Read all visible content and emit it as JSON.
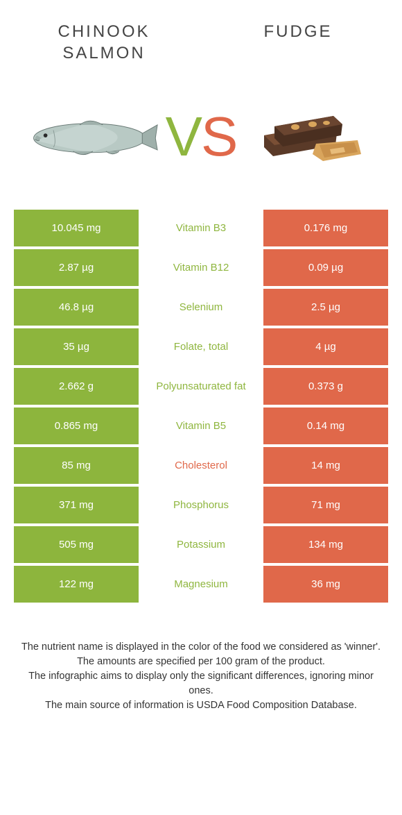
{
  "header": {
    "left_label": "CHINOOK SALMON",
    "right_label": "FUDGE"
  },
  "vs": {
    "v": "V",
    "s": "S"
  },
  "colors": {
    "left": "#8db53d",
    "right": "#e0684a",
    "nutrient_left_winner": "#8fb63f",
    "nutrient_right_winner": "#e0684a",
    "background": "#ffffff",
    "text": "#333333"
  },
  "rows": [
    {
      "left": "10.045 mg",
      "nutrient": "Vitamin B3",
      "winner": "left",
      "right": "0.176 mg"
    },
    {
      "left": "2.87 µg",
      "nutrient": "Vitamin B12",
      "winner": "left",
      "right": "0.09 µg"
    },
    {
      "left": "46.8 µg",
      "nutrient": "Selenium",
      "winner": "left",
      "right": "2.5 µg"
    },
    {
      "left": "35 µg",
      "nutrient": "Folate, total",
      "winner": "left",
      "right": "4 µg"
    },
    {
      "left": "2.662 g",
      "nutrient": "Polyunsaturated fat",
      "winner": "left",
      "right": "0.373 g"
    },
    {
      "left": "0.865 mg",
      "nutrient": "Vitamin B5",
      "winner": "left",
      "right": "0.14 mg"
    },
    {
      "left": "85 mg",
      "nutrient": "Cholesterol",
      "winner": "right",
      "right": "14 mg"
    },
    {
      "left": "371 mg",
      "nutrient": "Phosphorus",
      "winner": "left",
      "right": "71 mg"
    },
    {
      "left": "505 mg",
      "nutrient": "Potassium",
      "winner": "left",
      "right": "134 mg"
    },
    {
      "left": "122 mg",
      "nutrient": "Magnesium",
      "winner": "left",
      "right": "36 mg"
    }
  ],
  "footer": {
    "line1": "The nutrient name is displayed in the color of the food we considered as 'winner'.",
    "line2": "The amounts are specified per 100 gram of the product.",
    "line3": "The infographic aims to display only the significant differences, ignoring minor ones.",
    "line4": "The main source of information is USDA Food Composition Database."
  }
}
